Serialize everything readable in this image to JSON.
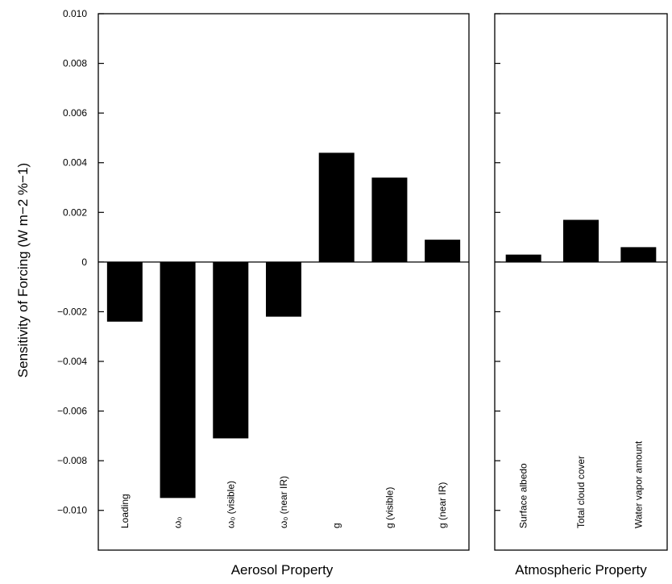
{
  "chart_data": [
    {
      "type": "bar",
      "panel": "aerosol",
      "ylabel": "Sensitivity of Forcing (W m−2 %−1)",
      "xlabel": "Aerosol Property",
      "ylim": [
        -0.0116,
        0.01
      ],
      "yticks": [
        0.01,
        0.008,
        0.006,
        0.004,
        0.002,
        0,
        -0.002,
        -0.004,
        -0.006,
        -0.008,
        -0.01
      ],
      "yticklabels": [
        "0.010",
        "0.008",
        "0.006",
        "0.004",
        "0.002",
        "0",
        "−0.002",
        "−0.004",
        "−0.006",
        "−0.008",
        "−0.010"
      ],
      "categories": [
        "Loading",
        "ω₀",
        "ω₀ (visible)",
        "ω₀ (near IR)",
        "g",
        "g (visible)",
        "g (near IR)"
      ],
      "values": [
        -0.0024,
        -0.0095,
        -0.0071,
        -0.0022,
        0.0044,
        0.0034,
        0.0009
      ],
      "bar_color": "#000000",
      "zero_line": true
    },
    {
      "type": "bar",
      "panel": "atmospheric",
      "xlabel": "Atmospheric Property",
      "ylim": [
        -0.0116,
        0.01
      ],
      "categories": [
        "Surface albedo",
        "Total cloud cover",
        "Water vapor amount"
      ],
      "values": [
        0.0003,
        0.0017,
        0.0006
      ],
      "bar_color": "#000000",
      "zero_line": true
    }
  ]
}
